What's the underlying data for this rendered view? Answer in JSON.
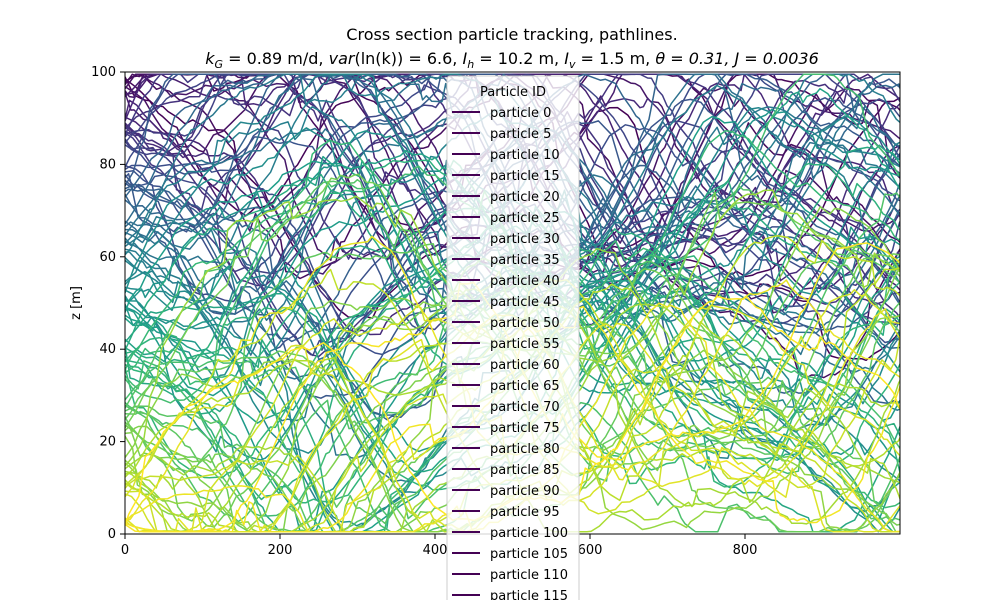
{
  "chart_data": {
    "type": "line",
    "title": "Cross section particle tracking, pathlines.",
    "subtitle": "k_G = 0.89 m/d, var(ln(k)) = 6.6, I_h = 10.2 m, I_v = 1.5 m, θ = 0.31, J = 0.0036",
    "subtitle_parts": {
      "kG": "k",
      "kG_sub": "G",
      "kG_val": " = 0.89 m/d, ",
      "var": "var",
      "var_rest": "(ln(k)) = 6.6, ",
      "Ih": "I",
      "Ih_sub": "h",
      "Ih_val": " = 10.2 m, ",
      "Iv": "I",
      "Iv_sub": "v",
      "Iv_val": " = 1.5 m, ",
      "theta": "θ = 0.31, ",
      "J": "J = 0.0036"
    },
    "xlabel": "",
    "ylabel": "z [m]",
    "xlim": [
      0,
      1000
    ],
    "ylim": [
      0,
      100
    ],
    "x_ticks": [
      "0",
      "200",
      "400",
      "600",
      "800"
    ],
    "y_ticks": [
      "0",
      "20",
      "40",
      "60",
      "80",
      "100"
    ],
    "colormap": "viridis",
    "legend_title": "Particle ID",
    "legend_placement": "upper-center",
    "series_count": 120,
    "start_depths": [
      100,
      96,
      92,
      88,
      84,
      80,
      75,
      70,
      65,
      60,
      55,
      50,
      45,
      40,
      35,
      30,
      25,
      20,
      15,
      10,
      5,
      2
    ],
    "legend_entries": [
      "particle 0",
      "particle 5",
      "particle 10",
      "particle 15",
      "particle 20",
      "particle 25",
      "particle 30",
      "particle 35",
      "particle 40",
      "particle 45",
      "particle 50",
      "particle 55",
      "particle 60",
      "particle 65",
      "particle 70",
      "particle 75",
      "particle 80",
      "particle 85",
      "particle 90",
      "particle 95",
      "particle 100",
      "particle 105",
      "particle 110",
      "particle 115"
    ],
    "legend_color": "#440154",
    "grid": false
  }
}
